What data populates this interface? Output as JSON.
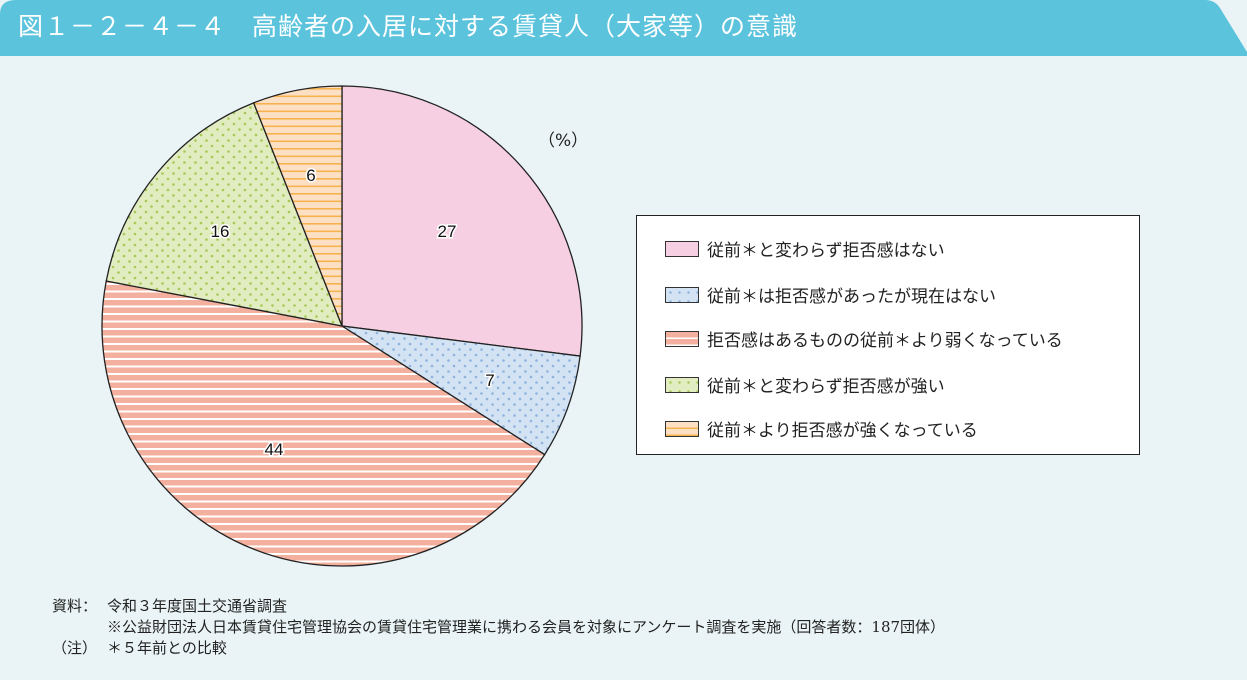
{
  "header": {
    "title": "図１－２－４－４　高齢者の入居に対する賃貸人（大家等）の意識",
    "bg_color": "#5bc3dc"
  },
  "chart_data": {
    "type": "pie",
    "title": "高齢者の入居に対する賃貸人（大家等）の意識",
    "unit_label": "（%）",
    "start_angle_deg": 0,
    "direction": "clockwise",
    "categories": [
      "従前＊と変わらず拒否感はない",
      "従前＊は拒否感があったが現在はない",
      "拒否感はあるものの従前＊より弱くなっている",
      "従前＊と変わらず拒否感が強い",
      "従前＊より拒否感が強くなっている"
    ],
    "values": [
      27,
      7,
      44,
      16,
      6
    ],
    "colors": [
      "#f6d0e2",
      "#d3e3f4",
      "#f4b09e",
      "#e1ecc0",
      "#fde0c4"
    ],
    "patterns": [
      "solid",
      "blue-dots",
      "white-horizontal-lines",
      "green-dots",
      "orange-horizontal-lines"
    ],
    "legend_position": "right"
  },
  "legend": {
    "items": [
      {
        "label": "従前＊と変わらず拒否感はない"
      },
      {
        "label": "従前＊は拒否感があったが現在はない"
      },
      {
        "label": "拒否感はあるものの従前＊より弱くなっている"
      },
      {
        "label": "従前＊と変わらず拒否感が強い"
      },
      {
        "label": "従前＊より拒否感が強くなっている"
      }
    ]
  },
  "slice_labels": [
    "27",
    "7",
    "44",
    "16",
    "6"
  ],
  "notes": {
    "source_key": "資料：",
    "source_line1": "令和３年度国土交通省調査",
    "source_line2": "※公益財団法人日本賃貸住宅管理協会の賃貸住宅管理業に携わる会員を対象にアンケート調査を実施（回答者数：187団体）",
    "note_key": "（注）",
    "note_text": "＊５年前との比較"
  }
}
